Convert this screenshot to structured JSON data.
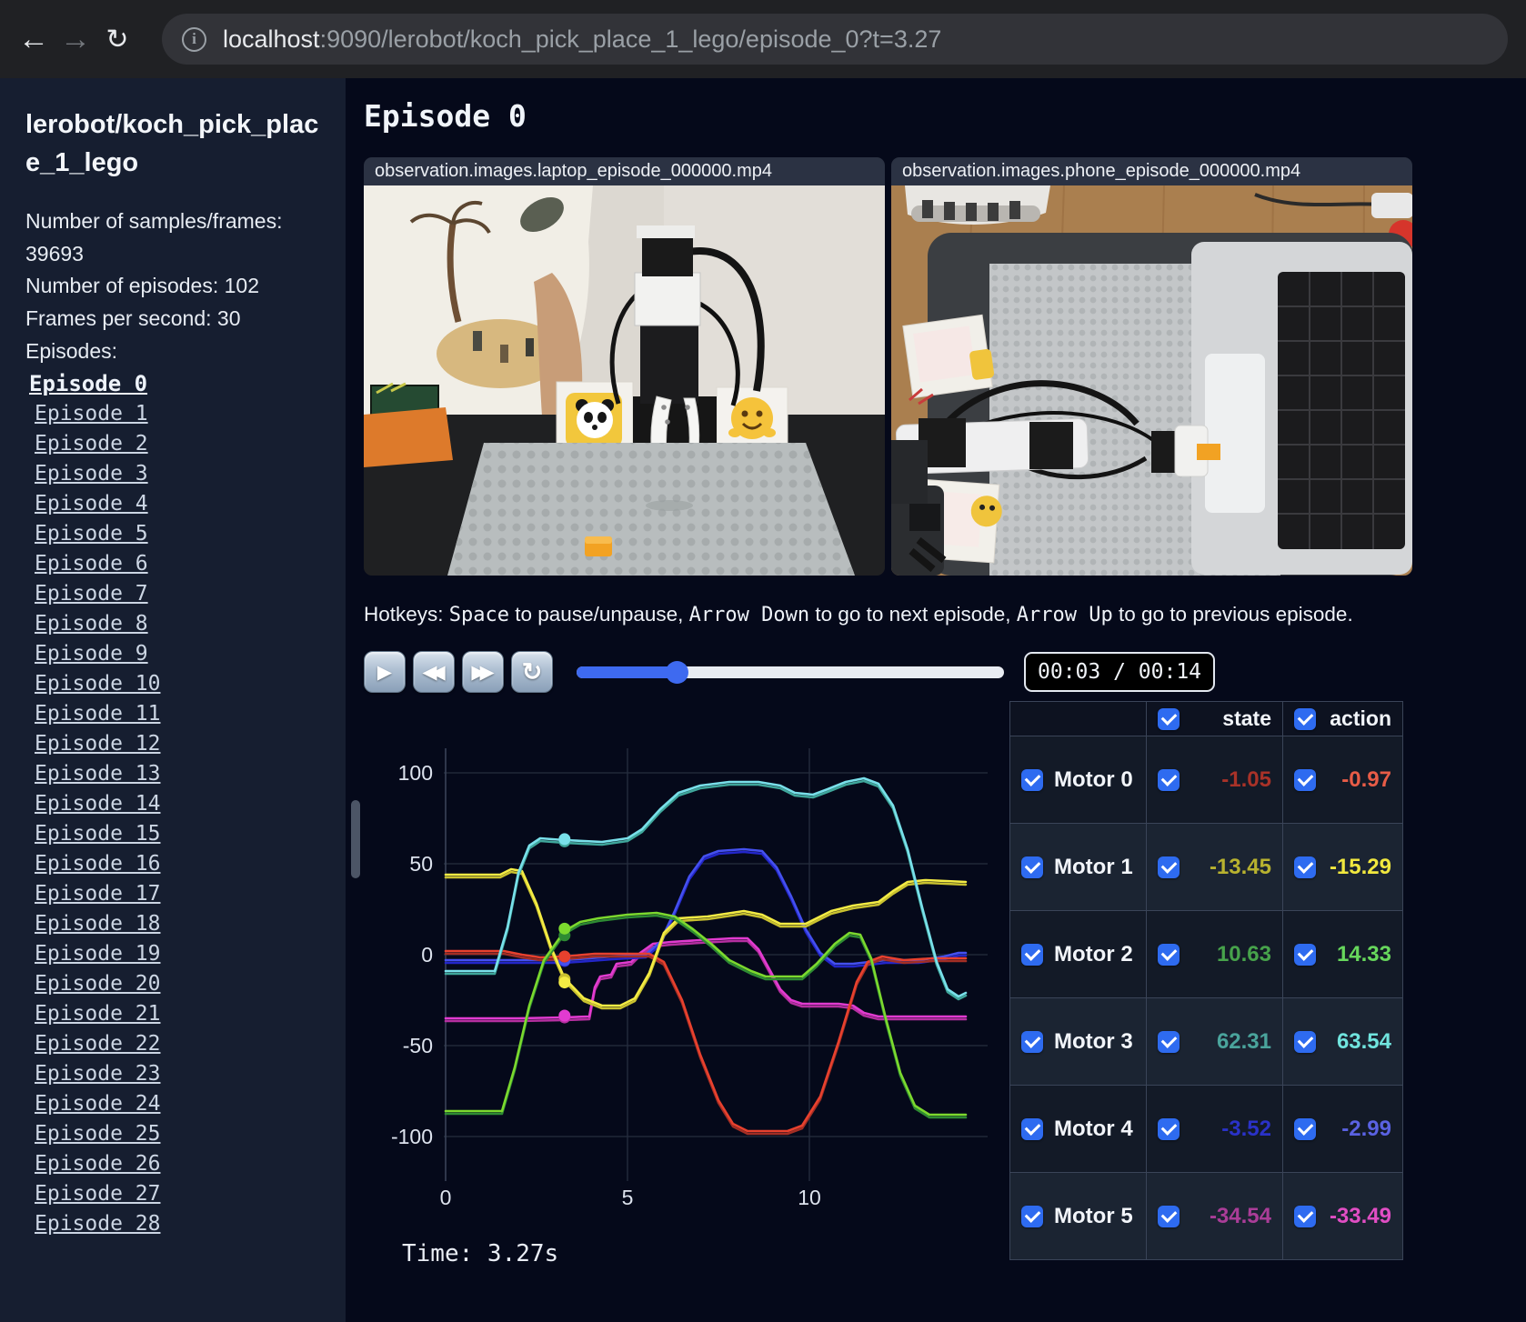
{
  "browser": {
    "back_icon": "←",
    "forward_icon": "→",
    "reload_icon": "↻",
    "info_icon": "i",
    "url_host": "localhost",
    "url_rest": ":9090/lerobot/koch_pick_place_1_lego/episode_0?t=3.27"
  },
  "sidebar": {
    "title": "lerobot/koch_pick_place_1_lego",
    "info_lines": [
      "Number of samples/frames: 39693",
      "Number of episodes: 102",
      "Frames per second: 30"
    ],
    "episodes_label": "Episodes:",
    "active_index": 0,
    "episodes": [
      "Episode 0",
      "Episode 1",
      "Episode 2",
      "Episode 3",
      "Episode 4",
      "Episode 5",
      "Episode 6",
      "Episode 7",
      "Episode 8",
      "Episode 9",
      "Episode 10",
      "Episode 11",
      "Episode 12",
      "Episode 13",
      "Episode 14",
      "Episode 15",
      "Episode 16",
      "Episode 17",
      "Episode 18",
      "Episode 19",
      "Episode 20",
      "Episode 21",
      "Episode 22",
      "Episode 23",
      "Episode 24",
      "Episode 25",
      "Episode 26",
      "Episode 27",
      "Episode 28"
    ]
  },
  "main": {
    "heading": "Episode 0",
    "videos": [
      {
        "title": "observation.images.laptop_episode_000000.mp4"
      },
      {
        "title": "observation.images.phone_episode_000000.mp4"
      }
    ],
    "hotkeys": {
      "prefix": "Hotkeys: ",
      "key1": "Space",
      "text1": " to pause/unpause, ",
      "key2": "Arrow Down",
      "text2": " to go to next episode, ",
      "key3": "Arrow Up",
      "text3": " to go to previous episode."
    },
    "controls": {
      "play_icon": "▶",
      "rewind_icon": "◀◀",
      "forward_icon": "▶▶",
      "loop_icon": "↻",
      "progress_percent": 23.4,
      "time": "00:03 / 00:14",
      "accent_color": "#3e6af0"
    }
  },
  "table": {
    "state_header": "state",
    "action_header": "action",
    "rows": [
      {
        "label": "Motor 0",
        "state": "-1.05",
        "action": "-0.97",
        "state_color": "#a93228",
        "action_color": "#e85c47"
      },
      {
        "label": "Motor 1",
        "state": "-13.45",
        "action": "-15.29",
        "state_color": "#b8b22f",
        "action_color": "#f1e83f"
      },
      {
        "label": "Motor 2",
        "state": "10.63",
        "action": "14.33",
        "state_color": "#47a34b",
        "action_color": "#67d75c"
      },
      {
        "label": "Motor 3",
        "state": "62.31",
        "action": "63.54",
        "state_color": "#4aa49c",
        "action_color": "#70e4de"
      },
      {
        "label": "Motor 4",
        "state": "-3.52",
        "action": "-2.99",
        "state_color": "#2a32c8",
        "action_color": "#5a62e2"
      },
      {
        "label": "Motor 5",
        "state": "-34.54",
        "action": "-33.49",
        "state_color": "#aa3d98",
        "action_color": "#e14ec4"
      }
    ]
  },
  "chart_data": {
    "type": "line",
    "title": "",
    "xlabel": "",
    "ylabel": "",
    "xticks": [
      0,
      5,
      10
    ],
    "yticks": [
      100,
      50,
      0,
      -50,
      -100
    ],
    "xlim": [
      0,
      14.3
    ],
    "ylim": [
      -112,
      112
    ],
    "grid": true,
    "legend_position": "none",
    "dot_time": 3.27,
    "time_label": "Time: 3.27s",
    "series": [
      {
        "name": "Motor 5",
        "state_color": "#b52fa0",
        "action_color": "#e23bd0",
        "state_now": -34.54,
        "action_now": -33.49,
        "points": [
          [
            0,
            -35
          ],
          [
            2.0,
            -35
          ],
          [
            3.27,
            -34.5
          ],
          [
            3.95,
            -34
          ],
          [
            4.1,
            -18
          ],
          [
            4.25,
            -12
          ],
          [
            4.55,
            -11
          ],
          [
            4.7,
            -5
          ],
          [
            5.1,
            -4
          ],
          [
            5.35,
            1
          ],
          [
            5.7,
            6
          ],
          [
            6.2,
            7
          ],
          [
            7.0,
            8
          ],
          [
            7.9,
            9
          ],
          [
            8.3,
            9
          ],
          [
            8.6,
            3
          ],
          [
            8.9,
            -8
          ],
          [
            9.2,
            -19
          ],
          [
            9.5,
            -25
          ],
          [
            9.8,
            -27
          ],
          [
            10.8,
            -27
          ],
          [
            11.2,
            -28
          ],
          [
            11.5,
            -32
          ],
          [
            11.9,
            -34
          ],
          [
            14.3,
            -34
          ]
        ]
      },
      {
        "name": "Motor 4",
        "state_color": "#2326c9",
        "action_color": "#4450ef",
        "state_now": -3.52,
        "action_now": -2.99,
        "points": [
          [
            0,
            -3
          ],
          [
            2.6,
            -3
          ],
          [
            3.27,
            -3
          ],
          [
            4.6,
            -1
          ],
          [
            5.5,
            0
          ],
          [
            5.9,
            7
          ],
          [
            6.3,
            24
          ],
          [
            6.7,
            43
          ],
          [
            7.1,
            54
          ],
          [
            7.5,
            57
          ],
          [
            8.2,
            58
          ],
          [
            8.7,
            57
          ],
          [
            9.1,
            48
          ],
          [
            9.5,
            32
          ],
          [
            9.9,
            14
          ],
          [
            10.3,
            1
          ],
          [
            10.7,
            -5
          ],
          [
            11.2,
            -5
          ],
          [
            12.1,
            -3
          ],
          [
            13.0,
            -3
          ],
          [
            13.7,
            -1
          ],
          [
            14.1,
            1
          ],
          [
            14.3,
            1
          ]
        ]
      },
      {
        "name": "Motor 0",
        "state_color": "#a32e24",
        "action_color": "#e8412e",
        "state_now": -1.05,
        "action_now": -0.97,
        "points": [
          [
            0,
            2
          ],
          [
            1.6,
            2
          ],
          [
            2.1,
            0
          ],
          [
            2.6,
            -1.5
          ],
          [
            3.27,
            -1
          ],
          [
            4.1,
            0.5
          ],
          [
            5.6,
            0.5
          ],
          [
            6.0,
            -4
          ],
          [
            6.5,
            -25
          ],
          [
            7.0,
            -55
          ],
          [
            7.5,
            -80
          ],
          [
            7.9,
            -93
          ],
          [
            8.3,
            -97
          ],
          [
            9.4,
            -97
          ],
          [
            9.8,
            -94
          ],
          [
            10.3,
            -78
          ],
          [
            10.8,
            -48
          ],
          [
            11.3,
            -15
          ],
          [
            11.6,
            -4
          ],
          [
            12.0,
            -1
          ],
          [
            12.6,
            -3
          ],
          [
            13.4,
            -2
          ],
          [
            14.3,
            -2
          ]
        ]
      },
      {
        "name": "Motor 1",
        "state_color": "#c9c12f",
        "action_color": "#f4ec44",
        "state_now": -13.45,
        "action_now": -15.29,
        "points": [
          [
            0,
            44
          ],
          [
            1.5,
            44
          ],
          [
            1.8,
            47
          ],
          [
            2.1,
            46
          ],
          [
            2.5,
            28
          ],
          [
            2.9,
            4
          ],
          [
            3.27,
            -13
          ],
          [
            3.8,
            -24
          ],
          [
            4.3,
            -28
          ],
          [
            4.8,
            -28
          ],
          [
            5.2,
            -24
          ],
          [
            5.6,
            -10
          ],
          [
            6.0,
            12
          ],
          [
            6.4,
            20
          ],
          [
            7.2,
            21
          ],
          [
            8.2,
            24
          ],
          [
            8.7,
            22
          ],
          [
            9.2,
            17
          ],
          [
            9.9,
            17
          ],
          [
            10.6,
            24
          ],
          [
            11.2,
            27
          ],
          [
            11.9,
            29
          ],
          [
            12.3,
            35
          ],
          [
            12.7,
            40
          ],
          [
            13.2,
            41
          ],
          [
            14.3,
            40
          ]
        ]
      },
      {
        "name": "Motor 2",
        "state_color": "#2e8b33",
        "action_color": "#7cd92e",
        "state_now": 10.63,
        "action_now": 14.33,
        "points": [
          [
            0,
            -86
          ],
          [
            1.55,
            -86
          ],
          [
            1.9,
            -62
          ],
          [
            2.3,
            -28
          ],
          [
            2.7,
            -3
          ],
          [
            3.27,
            13
          ],
          [
            3.7,
            18
          ],
          [
            4.2,
            20
          ],
          [
            5.0,
            22
          ],
          [
            5.8,
            23
          ],
          [
            6.3,
            21
          ],
          [
            6.8,
            14
          ],
          [
            7.3,
            6
          ],
          [
            7.8,
            -3
          ],
          [
            8.4,
            -9
          ],
          [
            8.8,
            -12
          ],
          [
            9.8,
            -12
          ],
          [
            10.2,
            -5
          ],
          [
            10.7,
            6
          ],
          [
            11.1,
            12
          ],
          [
            11.4,
            11
          ],
          [
            11.7,
            -2
          ],
          [
            12.1,
            -35
          ],
          [
            12.5,
            -65
          ],
          [
            12.9,
            -83
          ],
          [
            13.3,
            -88
          ],
          [
            14.3,
            -88
          ]
        ]
      },
      {
        "name": "Motor 3",
        "state_color": "#3fa69b",
        "action_color": "#79e0ea",
        "state_now": 62.31,
        "action_now": 63.54,
        "points": [
          [
            0,
            -9
          ],
          [
            1.35,
            -9
          ],
          [
            1.7,
            15
          ],
          [
            2.0,
            45
          ],
          [
            2.3,
            60
          ],
          [
            2.6,
            64
          ],
          [
            3.27,
            63
          ],
          [
            4.3,
            62
          ],
          [
            5.0,
            64
          ],
          [
            5.4,
            69
          ],
          [
            5.9,
            80
          ],
          [
            6.4,
            89
          ],
          [
            7.0,
            93
          ],
          [
            7.8,
            95
          ],
          [
            8.6,
            95
          ],
          [
            9.2,
            93
          ],
          [
            9.6,
            89
          ],
          [
            10.1,
            88
          ],
          [
            10.5,
            91
          ],
          [
            11.0,
            95
          ],
          [
            11.5,
            97
          ],
          [
            11.9,
            94
          ],
          [
            12.3,
            82
          ],
          [
            12.7,
            58
          ],
          [
            13.1,
            26
          ],
          [
            13.5,
            -4
          ],
          [
            13.8,
            -19
          ],
          [
            14.1,
            -23
          ],
          [
            14.3,
            -21
          ]
        ]
      }
    ]
  }
}
